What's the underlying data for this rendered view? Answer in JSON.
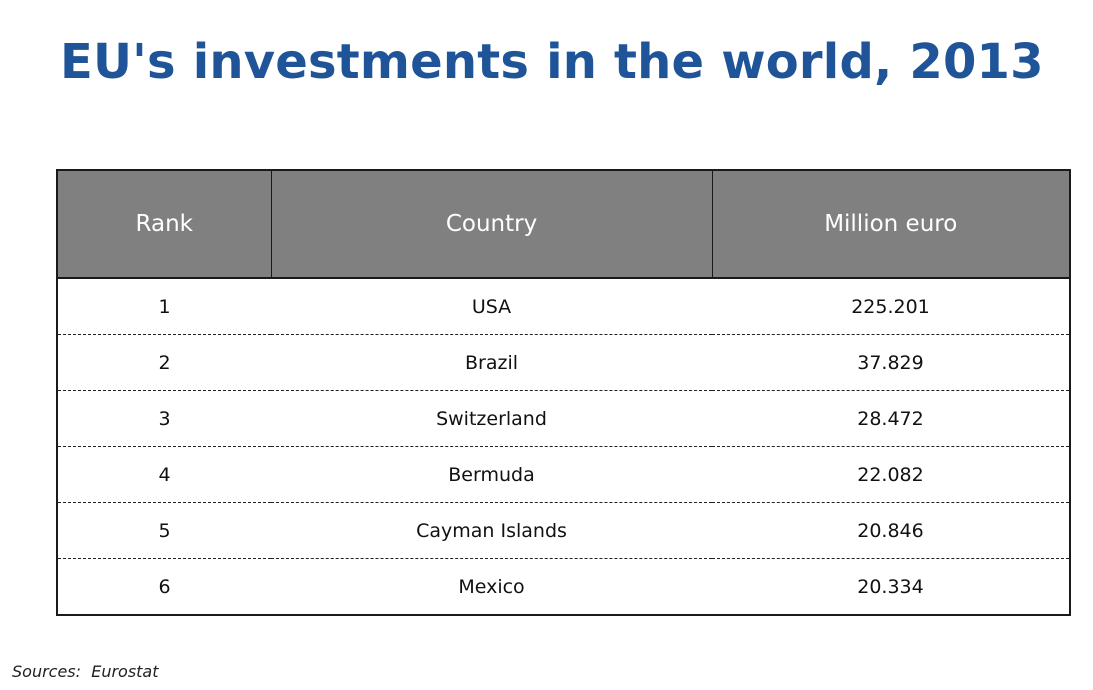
{
  "title": "EU's investments in the world, 2013",
  "source": "Sources:  Eurostat",
  "colors": {
    "title": "#1f5598",
    "header_bg": "#808080",
    "header_text": "#ffffff"
  },
  "chart_data": {
    "type": "table",
    "title": "EU's investments in the world, 2013",
    "columns": [
      "Rank",
      "Country",
      "Million euro"
    ],
    "rows": [
      [
        "1",
        "USA",
        "225.201"
      ],
      [
        "2",
        "Brazil",
        "37.829"
      ],
      [
        "3",
        "Switzerland",
        "28.472"
      ],
      [
        "4",
        "Bermuda",
        "22.082"
      ],
      [
        "5",
        "Cayman Islands",
        "20.846"
      ],
      [
        "6",
        "Mexico",
        "20.334"
      ]
    ]
  }
}
